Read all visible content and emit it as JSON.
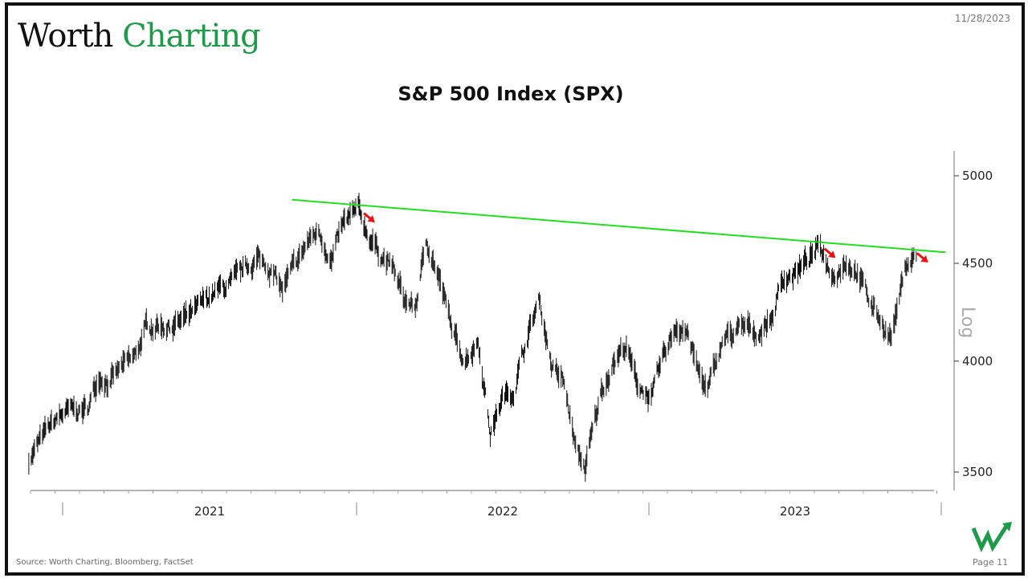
{
  "header": {
    "brand_dark": "Worth",
    "brand_green": "Charting",
    "date": "11/28/2023"
  },
  "footer": {
    "source": "Source: Worth Charting, Bloomberg, FactSet",
    "page": "Page 11"
  },
  "colors": {
    "trendline": "#22dd22",
    "arrow": "#ee1111",
    "bars": "#111111",
    "brand_green": "#1e9a4a"
  },
  "chart_data": {
    "type": "line",
    "style": "ohlc-bars",
    "title": "S&P 500 Index (SPX)",
    "ylabel": "Log",
    "yscale": "log",
    "ylim": [
      3450,
      5150
    ],
    "yticks": [
      3500,
      4000,
      4500,
      5000
    ],
    "xlim": [
      "2020-11-20",
      "2023-12-31"
    ],
    "xtick_labels": [
      "2021",
      "2022",
      "2023"
    ],
    "grid": false,
    "series": [
      {
        "name": "SPX",
        "points": [
          [
            "2020-11-20",
            3557
          ],
          [
            "2020-12-15",
            3690
          ],
          [
            "2021-01-01",
            3756
          ],
          [
            "2021-01-15",
            3768
          ],
          [
            "2021-02-01",
            3773
          ],
          [
            "2021-02-15",
            3934
          ],
          [
            "2021-03-01",
            3901
          ],
          [
            "2021-03-15",
            3968
          ],
          [
            "2021-04-01",
            4019
          ],
          [
            "2021-04-15",
            4170
          ],
          [
            "2021-05-01",
            4181
          ],
          [
            "2021-05-15",
            4173
          ],
          [
            "2021-06-01",
            4202
          ],
          [
            "2021-06-15",
            4246
          ],
          [
            "2021-07-01",
            4319
          ],
          [
            "2021-07-15",
            4360
          ],
          [
            "2021-08-01",
            4395
          ],
          [
            "2021-08-15",
            4468
          ],
          [
            "2021-09-01",
            4524
          ],
          [
            "2021-09-15",
            4480
          ],
          [
            "2021-10-01",
            4357
          ],
          [
            "2021-10-15",
            4471
          ],
          [
            "2021-11-01",
            4613
          ],
          [
            "2021-11-15",
            4682
          ],
          [
            "2021-12-01",
            4513
          ],
          [
            "2021-12-15",
            4709
          ],
          [
            "2022-01-03",
            4796
          ],
          [
            "2022-01-15",
            4662
          ],
          [
            "2022-02-01",
            4546
          ],
          [
            "2022-02-15",
            4471
          ],
          [
            "2022-03-01",
            4306
          ],
          [
            "2022-03-15",
            4262
          ],
          [
            "2022-03-29",
            4631
          ],
          [
            "2022-04-15",
            4392
          ],
          [
            "2022-05-01",
            4132
          ],
          [
            "2022-05-15",
            4008
          ],
          [
            "2022-06-01",
            4101
          ],
          [
            "2022-06-16",
            3667
          ],
          [
            "2022-07-01",
            3825
          ],
          [
            "2022-07-15",
            3863
          ],
          [
            "2022-08-01",
            4118
          ],
          [
            "2022-08-16",
            4305
          ],
          [
            "2022-09-01",
            3966
          ],
          [
            "2022-09-15",
            3901
          ],
          [
            "2022-10-01",
            3585
          ],
          [
            "2022-10-12",
            3520
          ],
          [
            "2022-11-01",
            3856
          ],
          [
            "2022-11-15",
            3991
          ],
          [
            "2022-12-01",
            4076
          ],
          [
            "2022-12-15",
            3895
          ],
          [
            "2023-01-03",
            3824
          ],
          [
            "2023-01-15",
            3999
          ],
          [
            "2023-02-02",
            4179
          ],
          [
            "2023-02-15",
            4147
          ],
          [
            "2023-03-01",
            3951
          ],
          [
            "2023-03-13",
            3855
          ],
          [
            "2023-04-01",
            4109
          ],
          [
            "2023-04-15",
            4137
          ],
          [
            "2023-05-01",
            4167
          ],
          [
            "2023-05-15",
            4136
          ],
          [
            "2023-06-01",
            4221
          ],
          [
            "2023-06-15",
            4425
          ],
          [
            "2023-07-01",
            4450
          ],
          [
            "2023-07-31",
            4589
          ],
          [
            "2023-08-15",
            4437
          ],
          [
            "2023-09-01",
            4515
          ],
          [
            "2023-09-15",
            4450
          ],
          [
            "2023-10-01",
            4288
          ],
          [
            "2023-10-27",
            4117
          ],
          [
            "2023-11-15",
            4502
          ],
          [
            "2023-11-28",
            4554
          ]
        ]
      }
    ],
    "trendline": {
      "start": [
        "2021-10-13",
        4858
      ],
      "end": [
        "2024-01-02",
        4560
      ]
    },
    "annotations": [
      {
        "type": "arrow-down-right",
        "date": "2022-01-10",
        "value": 4780
      },
      {
        "type": "arrow-down-right",
        "date": "2023-08-05",
        "value": 4580
      },
      {
        "type": "arrow-down-right",
        "date": "2023-11-28",
        "value": 4555
      }
    ]
  }
}
